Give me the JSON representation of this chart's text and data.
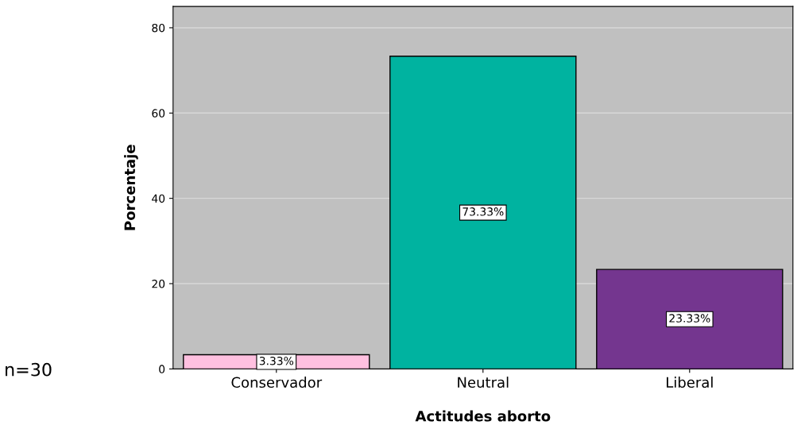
{
  "chart_data": {
    "type": "bar",
    "xlabel": "Actitudes aborto",
    "ylabel": "Porcentaje",
    "categories": [
      "Conservador",
      "Neutral",
      "Liberal"
    ],
    "values": [
      3.33,
      73.33,
      23.33
    ],
    "colors": [
      "#ffc0e0",
      "#00b3a0",
      "#74368f"
    ],
    "value_labels": [
      "3.33%",
      "73.33%",
      "23.33%"
    ],
    "ylim": [
      0,
      85
    ],
    "yticks": [
      0,
      20,
      40,
      60,
      80
    ],
    "grid": "y",
    "annotations": [
      "n=30"
    ]
  }
}
